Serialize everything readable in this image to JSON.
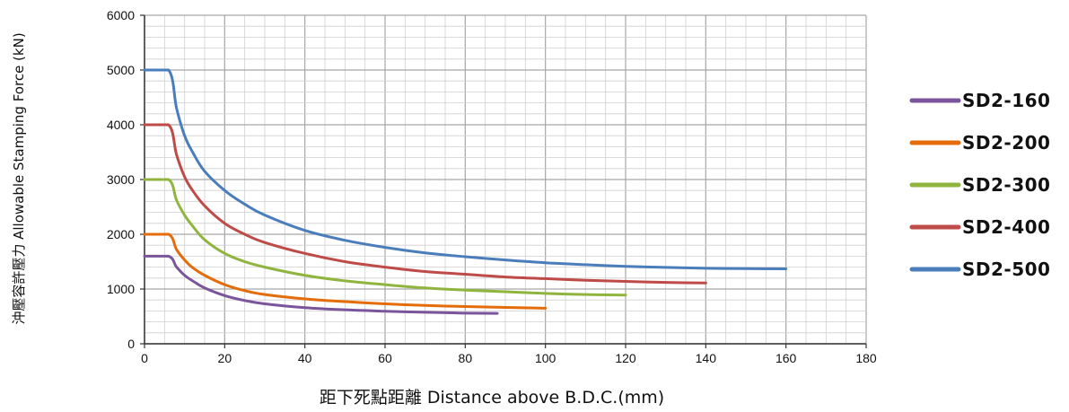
{
  "chart_data": {
    "type": "line",
    "xlabel": "距下死點距離  Distance above B.D.C.(mm)",
    "ylabel": "沖壓容許壓力  Allowable Stamping Force (kN)",
    "xlim": [
      0,
      180
    ],
    "ylim": [
      0,
      6000
    ],
    "x_ticks": [
      0,
      20,
      40,
      60,
      80,
      100,
      120,
      140,
      160,
      180
    ],
    "y_ticks": [
      0,
      1000,
      2000,
      3000,
      4000,
      5000,
      6000
    ],
    "x_minor_step": 5,
    "y_minor_step": 200,
    "grid": true,
    "legend_position": "right",
    "series": [
      {
        "name": "SD2-160",
        "color": "#7B559B",
        "x": [
          0,
          6,
          8,
          10,
          12,
          15,
          20,
          25,
          30,
          40,
          50,
          60,
          70,
          80,
          88
        ],
        "y": [
          1600,
          1600,
          1400,
          1250,
          1150,
          1020,
          880,
          790,
          730,
          660,
          620,
          595,
          575,
          560,
          555
        ]
      },
      {
        "name": "SD2-200",
        "color": "#E46C0A",
        "x": [
          0,
          6,
          8,
          10,
          12,
          15,
          20,
          25,
          30,
          40,
          50,
          60,
          70,
          80,
          90,
          100
        ],
        "y": [
          2000,
          2000,
          1720,
          1530,
          1390,
          1250,
          1080,
          970,
          900,
          820,
          770,
          730,
          700,
          680,
          665,
          650
        ]
      },
      {
        "name": "SD2-300",
        "color": "#8FB53F",
        "x": [
          0,
          6,
          8,
          10,
          12,
          15,
          20,
          25,
          30,
          40,
          50,
          60,
          70,
          80,
          90,
          100,
          110,
          120
        ],
        "y": [
          3000,
          3000,
          2620,
          2350,
          2150,
          1900,
          1650,
          1500,
          1400,
          1250,
          1150,
          1080,
          1020,
          980,
          950,
          920,
          900,
          890
        ]
      },
      {
        "name": "SD2-400",
        "color": "#BE4B48",
        "x": [
          0,
          6,
          8,
          10,
          12,
          15,
          20,
          25,
          30,
          40,
          50,
          60,
          70,
          80,
          90,
          100,
          110,
          120,
          130,
          140
        ],
        "y": [
          4000,
          4000,
          3450,
          3050,
          2800,
          2520,
          2200,
          2000,
          1850,
          1650,
          1500,
          1400,
          1320,
          1270,
          1220,
          1190,
          1160,
          1140,
          1120,
          1110
        ]
      },
      {
        "name": "SD2-500",
        "color": "#4A7EBB",
        "x": [
          0,
          6,
          8,
          10,
          12,
          15,
          20,
          25,
          30,
          40,
          50,
          60,
          70,
          80,
          90,
          100,
          110,
          120,
          130,
          140,
          150,
          160
        ],
        "y": [
          5000,
          5000,
          4300,
          3800,
          3500,
          3150,
          2800,
          2550,
          2350,
          2070,
          1890,
          1760,
          1660,
          1590,
          1530,
          1480,
          1445,
          1415,
          1395,
          1380,
          1372,
          1368
        ]
      }
    ]
  }
}
